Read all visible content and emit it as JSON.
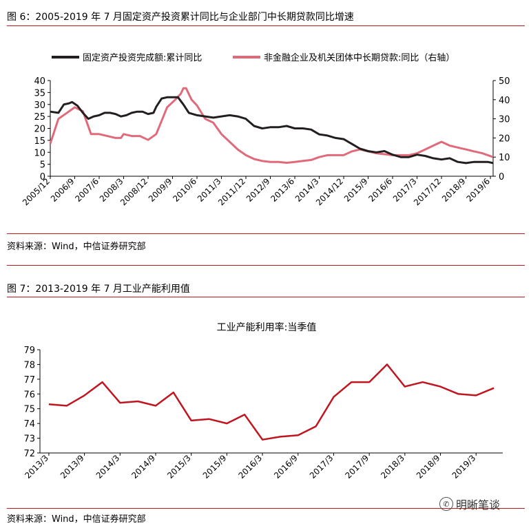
{
  "figure1": {
    "label": "图 6：2005-2019 年 7 月固定资产投资累计同比与企业部门中长期贷款同比增速",
    "source": "资料来源：Wind，中信证券研究部"
  },
  "figure2": {
    "label": "图 7：2013-2019 年 7 月工业产能利用值",
    "source": "资料来源：Wind，中信证券研究部"
  },
  "watermark": {
    "text": "明晰笔谈",
    "icon": "wechat-icon"
  },
  "chart_data": [
    {
      "type": "line",
      "title": "",
      "colors": {
        "black": "#231f20",
        "pink": "#e06a7a"
      },
      "legend_placement": "top",
      "left_axis": {
        "ylim": [
          0,
          40
        ],
        "ticks": [
          0,
          5,
          10,
          15,
          20,
          25,
          30,
          35,
          40
        ]
      },
      "right_axis": {
        "ylim": [
          0,
          50
        ],
        "ticks": [
          0,
          10,
          20,
          30,
          40,
          50
        ]
      },
      "x_tick_labels": [
        "2005/12",
        "2006/9",
        "2007/6",
        "2008/3",
        "2008/12",
        "2009/9",
        "2010/6",
        "2011/3",
        "2011/12",
        "2012/9",
        "2013/6",
        "2014/3",
        "2014/12",
        "2015/9",
        "2016/6",
        "2017/3",
        "2017/12",
        "2018/9",
        "2019/6"
      ],
      "x_start": "2005/12",
      "x_end": "2019/7",
      "series": [
        {
          "name": "固定资产投资完成额:累计同比",
          "axis": "left",
          "color": "#231f20",
          "points": [
            [
              "2005/12",
              27
            ],
            [
              "2006/3",
              26.5
            ],
            [
              "2006/5",
              30
            ],
            [
              "2006/7",
              30.5
            ],
            [
              "2006/8",
              31
            ],
            [
              "2006/10",
              29.5
            ],
            [
              "2006/12",
              26.5
            ],
            [
              "2007/2",
              24
            ],
            [
              "2007/4",
              25
            ],
            [
              "2007/6",
              25.5
            ],
            [
              "2007/8",
              26.5
            ],
            [
              "2007/10",
              26.5
            ],
            [
              "2007/12",
              26
            ],
            [
              "2008/2",
              25
            ],
            [
              "2008/4",
              25.5
            ],
            [
              "2008/6",
              26.5
            ],
            [
              "2008/8",
              27
            ],
            [
              "2008/10",
              27
            ],
            [
              "2008/12",
              26
            ],
            [
              "2009/2",
              26.5
            ],
            [
              "2009/3",
              29
            ],
            [
              "2009/5",
              32.5
            ],
            [
              "2009/7",
              33
            ],
            [
              "2009/9",
              33
            ],
            [
              "2009/11",
              33
            ],
            [
              "2010/1",
              30
            ],
            [
              "2010/3",
              26.5
            ],
            [
              "2010/6",
              25.5
            ],
            [
              "2010/9",
              25
            ],
            [
              "2010/12",
              24.5
            ],
            [
              "2011/3",
              25
            ],
            [
              "2011/6",
              25.5
            ],
            [
              "2011/9",
              25
            ],
            [
              "2011/12",
              24
            ],
            [
              "2012/3",
              21
            ],
            [
              "2012/6",
              20
            ],
            [
              "2012/9",
              20.5
            ],
            [
              "2012/12",
              20.5
            ],
            [
              "2013/3",
              21
            ],
            [
              "2013/6",
              20
            ],
            [
              "2013/9",
              20
            ],
            [
              "2013/12",
              19.5
            ],
            [
              "2014/3",
              17.5
            ],
            [
              "2014/6",
              17
            ],
            [
              "2014/9",
              16
            ],
            [
              "2014/12",
              15.5
            ],
            [
              "2015/3",
              13.5
            ],
            [
              "2015/6",
              11.5
            ],
            [
              "2015/9",
              10.5
            ],
            [
              "2015/12",
              10
            ],
            [
              "2016/3",
              10.5
            ],
            [
              "2016/6",
              9
            ],
            [
              "2016/9",
              8
            ],
            [
              "2016/12",
              8
            ],
            [
              "2017/3",
              9
            ],
            [
              "2017/6",
              8.5
            ],
            [
              "2017/9",
              7.5
            ],
            [
              "2017/12",
              7
            ],
            [
              "2018/3",
              7.5
            ],
            [
              "2018/6",
              6
            ],
            [
              "2018/9",
              5.5
            ],
            [
              "2018/12",
              6
            ],
            [
              "2019/3",
              6
            ],
            [
              "2019/5",
              6
            ],
            [
              "2019/7",
              5.5
            ]
          ]
        },
        {
          "name": "非金融企业及机关团体中长期贷款:同比（右轴）",
          "axis": "right",
          "color": "#e06a7a",
          "points": [
            [
              "2005/12",
              17
            ],
            [
              "2006/3",
              30
            ],
            [
              "2006/6",
              33
            ],
            [
              "2006/9",
              36
            ],
            [
              "2006/12",
              34
            ],
            [
              "2007/3",
              22
            ],
            [
              "2007/6",
              22
            ],
            [
              "2007/9",
              21
            ],
            [
              "2007/12",
              20
            ],
            [
              "2008/2",
              20
            ],
            [
              "2008/3",
              22
            ],
            [
              "2008/6",
              21
            ],
            [
              "2008/9",
              21
            ],
            [
              "2008/12",
              19
            ],
            [
              "2009/3",
              22
            ],
            [
              "2009/5",
              29
            ],
            [
              "2009/7",
              36
            ],
            [
              "2009/10",
              40
            ],
            [
              "2009/12",
              43
            ],
            [
              "2010/1",
              46
            ],
            [
              "2010/2",
              46
            ],
            [
              "2010/4",
              40
            ],
            [
              "2010/6",
              37
            ],
            [
              "2010/9",
              30
            ],
            [
              "2010/12",
              28
            ],
            [
              "2011/3",
              22
            ],
            [
              "2011/6",
              18
            ],
            [
              "2011/9",
              14
            ],
            [
              "2011/12",
              11
            ],
            [
              "2012/3",
              9
            ],
            [
              "2012/6",
              8
            ],
            [
              "2012/9",
              7.5
            ],
            [
              "2012/12",
              7.5
            ],
            [
              "2013/3",
              7
            ],
            [
              "2013/6",
              7.5
            ],
            [
              "2013/9",
              8
            ],
            [
              "2013/12",
              8.5
            ],
            [
              "2014/3",
              10
            ],
            [
              "2014/6",
              11
            ],
            [
              "2014/9",
              11
            ],
            [
              "2014/12",
              11
            ],
            [
              "2015/3",
              13
            ],
            [
              "2015/6",
              14
            ],
            [
              "2015/9",
              13
            ],
            [
              "2015/12",
              12
            ],
            [
              "2016/3",
              11.5
            ],
            [
              "2016/6",
              11
            ],
            [
              "2016/9",
              11
            ],
            [
              "2016/12",
              11
            ],
            [
              "2017/3",
              12
            ],
            [
              "2017/6",
              14
            ],
            [
              "2017/9",
              16
            ],
            [
              "2017/12",
              18
            ],
            [
              "2018/3",
              16
            ],
            [
              "2018/6",
              15
            ],
            [
              "2018/9",
              14
            ],
            [
              "2018/12",
              13
            ],
            [
              "2019/3",
              12
            ],
            [
              "2019/5",
              11
            ],
            [
              "2019/7",
              10
            ]
          ]
        }
      ]
    },
    {
      "type": "line",
      "title": "工业产能利用率:当季值",
      "ylim": [
        72,
        79
      ],
      "y_ticks": [
        72,
        73,
        74,
        75,
        76,
        77,
        78,
        79
      ],
      "categories": [
        "2013/3",
        "2013/6",
        "2013/9",
        "2013/12",
        "2014/3",
        "2014/6",
        "2014/9",
        "2014/12",
        "2015/3",
        "2015/6",
        "2015/9",
        "2015/12",
        "2016/3",
        "2016/6",
        "2016/9",
        "2016/12",
        "2017/3",
        "2017/6",
        "2017/9",
        "2017/12",
        "2018/3",
        "2018/6",
        "2018/9",
        "2018/12",
        "2019/3",
        "2019/6"
      ],
      "x_tick_labels": [
        "2013/3",
        "2013/9",
        "2014/3",
        "2014/9",
        "2015/3",
        "2015/9",
        "2016/3",
        "2016/9",
        "2017/3",
        "2017/9",
        "2018/3",
        "2018/9",
        "2019/3"
      ],
      "series": [
        {
          "color": "#c0141e",
          "values": [
            75.3,
            75.2,
            75.9,
            76.8,
            75.4,
            75.5,
            75.2,
            76.1,
            74.2,
            74.3,
            74.0,
            74.6,
            72.9,
            73.1,
            73.2,
            73.8,
            75.8,
            76.8,
            76.8,
            78.0,
            76.5,
            76.8,
            76.5,
            76.0,
            75.9,
            76.4
          ]
        }
      ]
    }
  ]
}
